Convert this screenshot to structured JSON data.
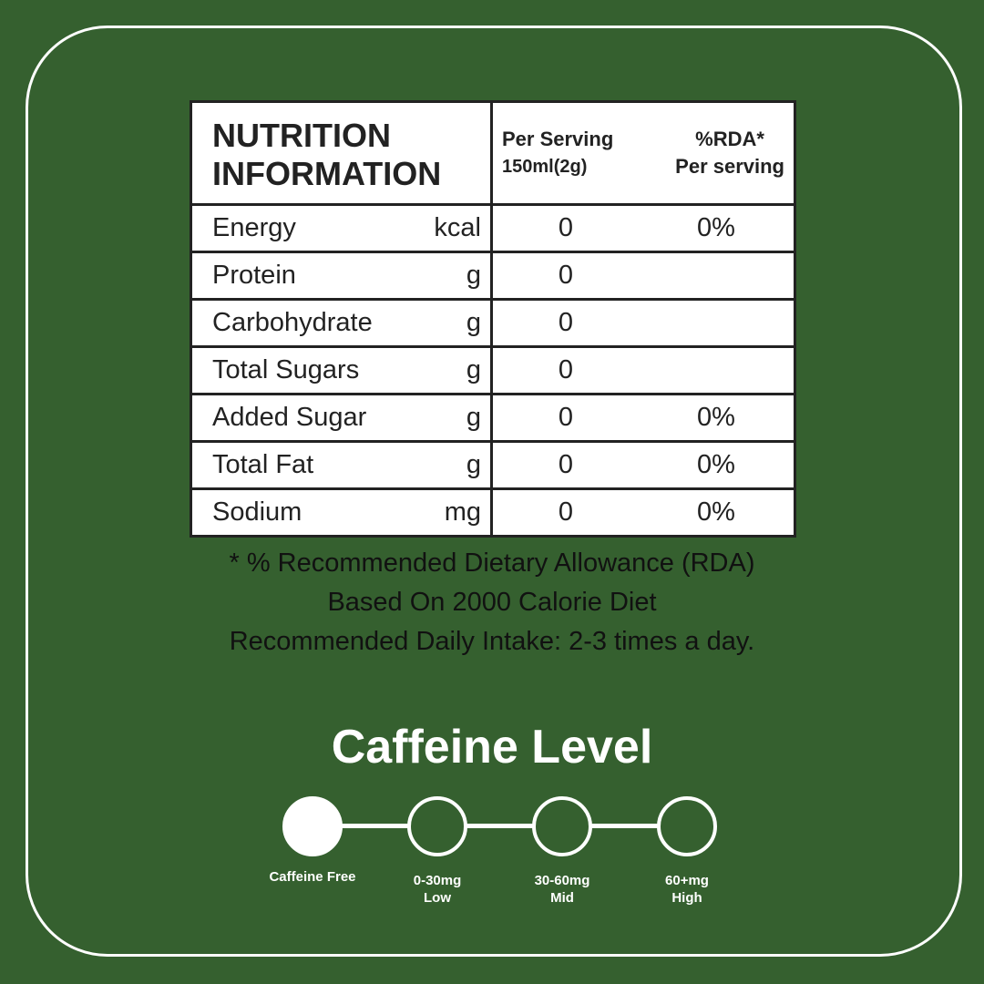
{
  "table": {
    "title_line1": "NUTRITION",
    "title_line2": "INFORMATION",
    "col1_line1": "Per Serving",
    "col1_line2": "150ml(2g)",
    "col2_line1": "%RDA*",
    "col2_line2": "Per serving",
    "rows": [
      {
        "name": "Energy",
        "unit": "kcal",
        "value": "0",
        "rda": "0%"
      },
      {
        "name": "Protein",
        "unit": "g",
        "value": "0",
        "rda": ""
      },
      {
        "name": "Carbohydrate",
        "unit": "g",
        "value": "0",
        "rda": ""
      },
      {
        "name": "Total Sugars",
        "unit": "g",
        "value": "0",
        "rda": ""
      },
      {
        "name": "Added Sugar",
        "unit": "g",
        "value": "0",
        "rda": "0%"
      },
      {
        "name": "Total Fat",
        "unit": "g",
        "value": "0",
        "rda": "0%"
      },
      {
        "name": "Sodium",
        "unit": "mg",
        "value": "0",
        "rda": "0%"
      }
    ]
  },
  "footnote": {
    "line1": "* % Recommended Dietary Allowance (RDA)",
    "line2": "Based On 2000 Calorie Diet",
    "line3": "Recommended Daily Intake: 2-3 times a day."
  },
  "caffeine": {
    "title": "Caffeine Level",
    "selected_index": 0,
    "levels": [
      {
        "line1": "Caffeine Free",
        "line2": ""
      },
      {
        "line1": "0-30mg",
        "line2": "Low"
      },
      {
        "line1": "30-60mg",
        "line2": "Mid"
      },
      {
        "line1": "60+mg",
        "line2": "High"
      }
    ]
  },
  "colors": {
    "background": "#35602f",
    "foreground": "#ffffff",
    "text": "#222222"
  }
}
